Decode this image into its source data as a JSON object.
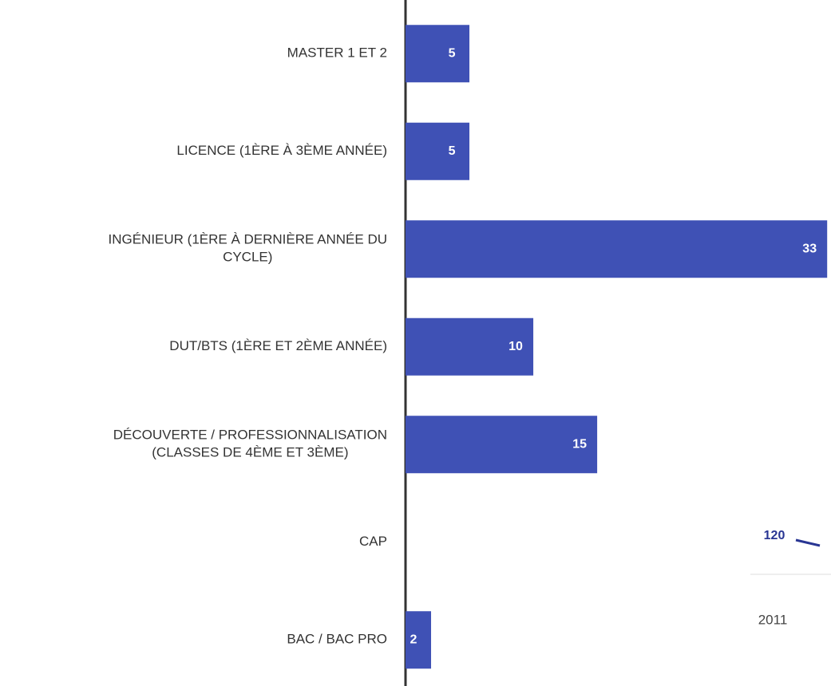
{
  "chart_data": [
    {
      "type": "hbar",
      "categories": [
        [
          "MASTER 1 ET 2"
        ],
        [
          "LICENCE (1ÈRE À 3ÈME ANNÉE)"
        ],
        [
          "INGÉNIEUR (1ÈRE À DERNIÈRE ANNÉE DU",
          "CYCLE)"
        ],
        [
          "DUT/BTS (1ÈRE ET 2ÈME ANNÉE)"
        ],
        [
          "DÉCOUVERTE / PROFESSIONNALISATION",
          "(CLASSES DE 4ÈME ET 3ÈME)"
        ],
        [
          "CAP"
        ],
        [
          "BAC / BAC PRO"
        ]
      ],
      "values": [
        5,
        5,
        33,
        10,
        15,
        null,
        2
      ],
      "color": "#3f51b5",
      "xlim": [
        0,
        33.3
      ]
    },
    {
      "type": "line",
      "categories": [
        "2011"
      ],
      "values": [
        120
      ],
      "color": "#283593"
    }
  ]
}
